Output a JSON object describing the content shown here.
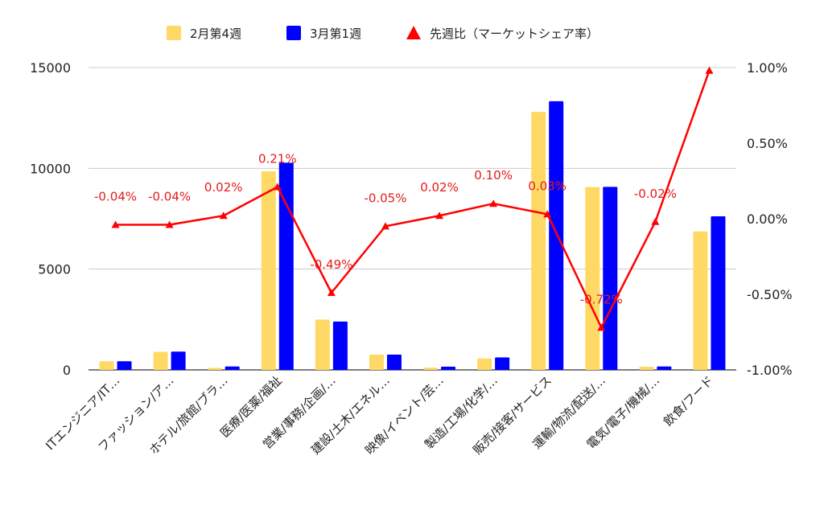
{
  "chart_data": {
    "type": "bar",
    "categories": [
      "ITエンジニア/IT…",
      "ファッション/ア…",
      "ホテル/旅館/ブラ…",
      "医療/医薬/福祉",
      "営業/事務/企画/…",
      "建設/土木/エネル…",
      "映像/イベント/芸…",
      "製造/工場/化学/…",
      "販売/接客/サービス",
      "運輸/物流/配送/…",
      "電気/電子/機械/…",
      "飲食/フード"
    ],
    "series": [
      {
        "name": "2月第4週",
        "type": "bar",
        "axis": "left",
        "color": "#FFD966",
        "values": [
          430,
          900,
          100,
          9850,
          2500,
          760,
          110,
          570,
          12800,
          9070,
          160,
          6870
        ]
      },
      {
        "name": "3月第1週",
        "type": "bar",
        "axis": "left",
        "color": "#0000FF",
        "values": [
          430,
          910,
          170,
          10280,
          2400,
          760,
          160,
          620,
          13330,
          9080,
          170,
          7620
        ]
      },
      {
        "name": "先週比（マーケットシェア率）",
        "type": "line",
        "axis": "right",
        "color": "#FF0000",
        "values": [
          -0.04,
          -0.04,
          0.02,
          0.21,
          -0.49,
          -0.05,
          0.02,
          0.1,
          0.03,
          -0.72,
          -0.02,
          0.98
        ],
        "data_labels": [
          "-0.04%",
          "-0.04%",
          "0.02%",
          "0.21%",
          "-0.49%",
          "-0.05%",
          "0.02%",
          "0.10%",
          "0.03%",
          "-0.72%",
          "-0.02%",
          ""
        ]
      }
    ],
    "y_left": {
      "ylim": [
        0,
        15000
      ],
      "ticks": [
        0,
        5000,
        10000,
        15000
      ],
      "tick_labels": [
        "0",
        "5000",
        "10000",
        "15000"
      ]
    },
    "y_right": {
      "ylim": [
        -1.0,
        1.0
      ],
      "ticks": [
        -1.0,
        -0.5,
        0.0,
        0.5,
        1.0
      ],
      "tick_labels": [
        "-1.00%",
        "-0.50%",
        "0.00%",
        "0.50%",
        "1.00%"
      ]
    },
    "grid": true,
    "legend_position": "top"
  }
}
